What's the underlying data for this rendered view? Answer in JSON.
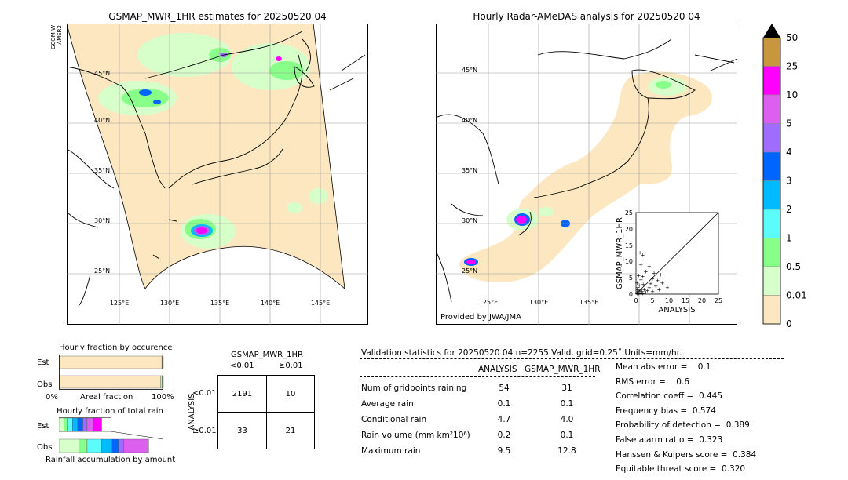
{
  "left_map": {
    "title": "GSMAP_MWR_1HR estimates for 20250520 04",
    "sensor_label": "GCOM-W\nAMSR2",
    "lat_labels": [
      "45°N",
      "40°N",
      "35°N",
      "30°N",
      "25°N"
    ],
    "lon_labels": [
      "125°E",
      "130°E",
      "135°E",
      "140°E",
      "145°E"
    ]
  },
  "right_map": {
    "title": "Hourly Radar-AMeDAS analysis for 20250520 04",
    "lat_labels": [
      "45°N",
      "40°N",
      "35°N",
      "30°N",
      "25°N"
    ],
    "lon_labels": [
      "125°E",
      "130°E",
      "135°E"
    ],
    "credit": "Provided by JWA/JMA"
  },
  "colorbar": {
    "labels": [
      "50",
      "25",
      "10",
      "5",
      "4",
      "3",
      "2",
      "1",
      "0.5",
      "0.01",
      "0"
    ],
    "colors": [
      "#c8963c",
      "#ff00ff",
      "#dd5ff0",
      "#9f6cff",
      "#0064ff",
      "#00bbff",
      "#5bfcfc",
      "#88ff88",
      "#d6ffca",
      "#fce7c0"
    ]
  },
  "scatter": {
    "ylabel": "GSMAP_MWR_1HR",
    "xlabel": "ANALYSIS",
    "ticks": [
      "0",
      "5",
      "10",
      "15",
      "20",
      "25"
    ]
  },
  "fraction_occurrence": {
    "title": "Hourly fraction by occurence",
    "rows": [
      "Est",
      "Obs"
    ],
    "axis_left": "0%",
    "axis_mid": "Areal fraction",
    "axis_right": "100%"
  },
  "fraction_total": {
    "title": "Hourly fraction of total rain",
    "rows": [
      "Est",
      "Obs"
    ],
    "caption": "Rainfall accumulation by amount"
  },
  "contingency": {
    "title": "GSMAP_MWR_1HR",
    "col_headers": [
      "<0.01",
      "≥0.01"
    ],
    "row_axis": "ANALYSIS",
    "row_headers": [
      "<0.01",
      "≥0.01"
    ],
    "cells": [
      [
        "2191",
        "10"
      ],
      [
        "33",
        "21"
      ]
    ]
  },
  "validation": {
    "header": "Validation statistics for 20250520 04  n=2255 Valid. grid=0.25˚ Units=mm/hr.",
    "col_analysis": "ANALYSIS",
    "col_gsmap": "GSMAP_MWR_1HR",
    "rows": [
      {
        "label": "Num of gridpoints raining",
        "analysis": "54",
        "gsmap": "31"
      },
      {
        "label": "Average rain",
        "analysis": "0.1",
        "gsmap": "0.1"
      },
      {
        "label": "Conditional rain",
        "analysis": "4.7",
        "gsmap": "4.0"
      },
      {
        "label": "Rain volume (mm km²10⁶)",
        "analysis": "0.2",
        "gsmap": "0.1"
      },
      {
        "label": "Maximum rain",
        "analysis": "9.5",
        "gsmap": "12.8"
      }
    ],
    "scores": [
      "Mean abs error =    0.1",
      "RMS error =    0.6",
      "Correlation coeff =  0.445",
      "Frequency bias =  0.574",
      "Probability of detection =  0.389",
      "False alarm ratio =  0.323",
      "Hanssen & Kuipers score =  0.384",
      "Equitable threat score =  0.320"
    ]
  },
  "chart_data": [
    {
      "type": "scatter",
      "title": "",
      "xlabel": "ANALYSIS",
      "ylabel": "GSMAP_MWR_1HR",
      "xlim": [
        0,
        25
      ],
      "ylim": [
        0,
        25
      ],
      "points": [
        {
          "x": 0.3,
          "y": 0.3
        },
        {
          "x": 0.5,
          "y": 0.8
        },
        {
          "x": 0.8,
          "y": 0.2
        },
        {
          "x": 1.0,
          "y": 1.2
        },
        {
          "x": 1.2,
          "y": 0.5
        },
        {
          "x": 1.5,
          "y": 0.2
        },
        {
          "x": 0.4,
          "y": 1.5
        },
        {
          "x": 1.8,
          "y": 1.0
        },
        {
          "x": 2.0,
          "y": 0.3
        },
        {
          "x": 0.6,
          "y": 2.2
        },
        {
          "x": 2.5,
          "y": 1.5
        },
        {
          "x": 1.0,
          "y": 2.8
        },
        {
          "x": 3.0,
          "y": 0.5
        },
        {
          "x": 2.2,
          "y": 3.0
        },
        {
          "x": 0.3,
          "y": 3.5
        },
        {
          "x": 3.5,
          "y": 1.2
        },
        {
          "x": 4.0,
          "y": 2.0
        },
        {
          "x": 1.5,
          "y": 4.5
        },
        {
          "x": 5.0,
          "y": 0.8
        },
        {
          "x": 4.5,
          "y": 3.2
        },
        {
          "x": 6.0,
          "y": 2.5
        },
        {
          "x": 2.0,
          "y": 5.5
        },
        {
          "x": 7.0,
          "y": 1.5
        },
        {
          "x": 8.0,
          "y": 3.5
        },
        {
          "x": 9.5,
          "y": 2.0
        },
        {
          "x": 5.0,
          "y": 4.8
        },
        {
          "x": 1.2,
          "y": 12.8
        },
        {
          "x": 2.0,
          "y": 12.0
        },
        {
          "x": 5.5,
          "y": 6.5
        },
        {
          "x": 3.0,
          "y": 7.0
        },
        {
          "x": 4.0,
          "y": 8.5
        },
        {
          "x": 0.8,
          "y": 5.8
        },
        {
          "x": 1.5,
          "y": 9.0
        },
        {
          "x": 6.5,
          "y": 4.2
        },
        {
          "x": 7.5,
          "y": 6.0
        }
      ],
      "reference_line": "1:1"
    },
    {
      "type": "bar",
      "title": "Hourly fraction by occurence",
      "orientation": "horizontal",
      "stacked": true,
      "categories": [
        "Est",
        "Obs"
      ],
      "series": [
        {
          "name": "0",
          "color": "#fce7c0",
          "values": [
            0.986,
            0.976
          ]
        },
        {
          "name": "0.01",
          "color": "#d6ffca",
          "values": [
            0.004,
            0.01
          ]
        },
        {
          "name": "0.5",
          "color": "#88ff88",
          "values": [
            0.003,
            0.006
          ]
        },
        {
          "name": "1",
          "color": "#5bfcfc",
          "values": [
            0.003,
            0.004
          ]
        },
        {
          "name": "2+",
          "color": "#000000",
          "values": [
            0.004,
            0.004
          ]
        }
      ]
    },
    {
      "type": "bar",
      "title": "Hourly fraction of total rain",
      "orientation": "horizontal",
      "stacked": true,
      "categories": [
        "Est",
        "Obs"
      ],
      "series": [
        {
          "name": "0.01",
          "color": "#d6ffca",
          "values": [
            0.05,
            0.19
          ]
        },
        {
          "name": "0.5",
          "color": "#88ff88",
          "values": [
            0.03,
            0.08
          ]
        },
        {
          "name": "1",
          "color": "#5bfcfc",
          "values": [
            0.05,
            0.14
          ]
        },
        {
          "name": "2",
          "color": "#00bbff",
          "values": [
            0.05,
            0.1
          ]
        },
        {
          "name": "3",
          "color": "#0064ff",
          "values": [
            0.05,
            0.06
          ]
        },
        {
          "name": "4",
          "color": "#9f6cff",
          "values": [
            0.04,
            0.05
          ]
        },
        {
          "name": "5",
          "color": "#dd5ff0",
          "values": [
            0.06,
            0.24
          ]
        },
        {
          "name": "10",
          "color": "#ff00ff",
          "values": [
            0.08,
            0.0
          ]
        }
      ]
    }
  ]
}
